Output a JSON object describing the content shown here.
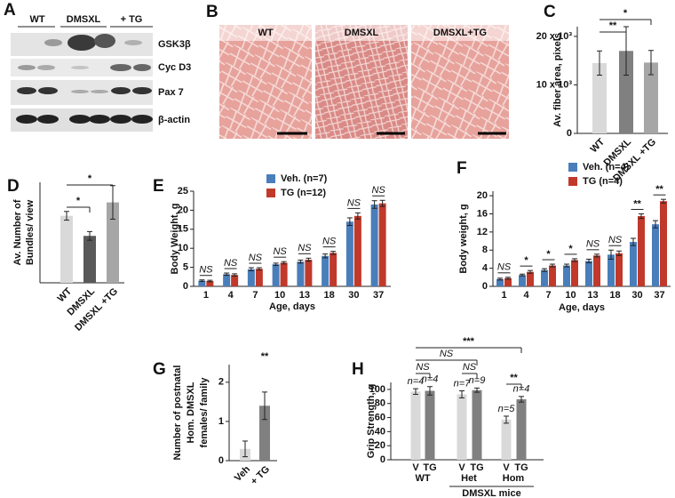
{
  "panels": {
    "A": {
      "letter": "A",
      "columns": [
        "WT",
        "DMSXL",
        "+ TG"
      ],
      "rows": [
        "GSK3β",
        "Cyc D3",
        "Pax 7",
        "β-actin"
      ]
    },
    "B": {
      "letter": "B",
      "images": [
        "WT",
        "DMSXL",
        "DMSXL+TG"
      ]
    }
  },
  "chart_data": [
    {
      "letter": "C",
      "type": "bar",
      "ylabel": "Av. fiber area, pixels",
      "categories": [
        "WT",
        "DMSXL",
        "DMSXL +TG"
      ],
      "values": [
        14500,
        17000,
        14600
      ],
      "errors": [
        2500,
        5000,
        2500
      ],
      "colors": [
        "#d9d9d9",
        "#808080",
        "#a6a6a6"
      ],
      "ylim": [
        0,
        22000
      ],
      "yticks": [
        0,
        {
          "value": 10000,
          "label": "10 x 10³"
        },
        {
          "value": 20000,
          "label": "20 x 10³"
        }
      ],
      "significance": [
        "**",
        "*"
      ]
    },
    {
      "letter": "D",
      "type": "bar",
      "ylabel": [
        "Av. Number of",
        "Bundles/ view"
      ],
      "categories": [
        "WT",
        "DMSXL",
        "DMSXL +TG"
      ],
      "values": [
        20,
        14,
        24
      ],
      "errors": [
        1.3,
        1.3,
        5
      ],
      "colors": [
        "#d9d9d9",
        "#595959",
        "#a6a6a6"
      ],
      "ylim": [
        0,
        30
      ],
      "significance": [
        "*",
        "*"
      ]
    },
    {
      "letter": "E",
      "type": "bar",
      "ylabel": "Body Weight, g",
      "xlabel": "Age, days",
      "categories": [
        "1",
        "4",
        "7",
        "10",
        "13",
        "18",
        "30",
        "37"
      ],
      "series": [
        {
          "name": "Veh. (n=7)",
          "color": "#4a7ebb",
          "values": [
            1.5,
            3.2,
            4.5,
            5.8,
            6.5,
            8,
            17,
            21.5
          ],
          "errors": [
            0.2,
            0.3,
            0.4,
            0.3,
            0.4,
            0.5,
            1,
            1
          ]
        },
        {
          "name": "TG (n=12)",
          "color": "#c0392b",
          "values": [
            1.4,
            3,
            4.6,
            6.2,
            7,
            8.8,
            18.5,
            21.8
          ],
          "errors": [
            0.2,
            0.3,
            0.3,
            0.3,
            0.4,
            0.4,
            0.8,
            0.8
          ]
        }
      ],
      "ylim": [
        0,
        25
      ],
      "yticks": [
        0,
        5,
        10,
        15,
        20,
        25
      ],
      "significance": [
        "NS",
        "NS",
        "NS",
        "NS",
        "NS",
        "NS",
        "NS",
        "NS"
      ]
    },
    {
      "letter": "F",
      "type": "bar",
      "ylabel": "Body weight, g",
      "xlabel": "Age, days",
      "categories": [
        "1",
        "4",
        "7",
        "10",
        "13",
        "18",
        "30",
        "37"
      ],
      "series": [
        {
          "name": "Veh. (n=4)",
          "color": "#4a7ebb",
          "values": [
            1.6,
            2.5,
            3.6,
            4.6,
            5.6,
            7,
            9.8,
            13.7
          ],
          "errors": [
            0.2,
            0.2,
            0.3,
            0.3,
            0.4,
            1,
            0.8,
            0.8
          ]
        },
        {
          "name": "TG (n=4)",
          "color": "#c0392b",
          "values": [
            1.8,
            3.2,
            4.6,
            5.8,
            6.8,
            7.3,
            15.5,
            18.8
          ],
          "errors": [
            0.2,
            0.3,
            0.3,
            0.3,
            0.3,
            0.5,
            0.5,
            0.4
          ]
        }
      ],
      "ylim": [
        0,
        21
      ],
      "yticks": [
        0,
        4,
        8,
        12,
        16,
        20
      ],
      "significance": [
        "NS",
        "*",
        "*",
        "*",
        "NS",
        "NS",
        "**",
        "**"
      ]
    },
    {
      "letter": "G",
      "type": "bar",
      "ylabel": [
        "Number of  postnatal",
        "Hom. DMSXL",
        "females/ family"
      ],
      "categories": [
        "Veh",
        "+ TG"
      ],
      "values": [
        0.3,
        1.4
      ],
      "errors": [
        0.2,
        0.35
      ],
      "colors": [
        "#d9d9d9",
        "#808080"
      ],
      "ylim": [
        0,
        2.45
      ],
      "yticks": [
        0,
        1,
        2
      ],
      "significance": [
        "**"
      ]
    },
    {
      "letter": "H",
      "type": "bar",
      "ylabel": "Grip Strength, g",
      "categories": [
        "V",
        "TG",
        "V",
        "TG",
        "V",
        "TG"
      ],
      "values": [
        97,
        98,
        93,
        99,
        57,
        86
      ],
      "errors": [
        4,
        6,
        5,
        3,
        5,
        4
      ],
      "colors": [
        "#d9d9d9",
        "#808080",
        "#d9d9d9",
        "#808080",
        "#d9d9d9",
        "#808080"
      ],
      "n_labels": [
        "n=4",
        "n=4",
        "n=7",
        "n=9",
        "n=5",
        "n=4"
      ],
      "groups": [
        "WT",
        "Het",
        "Hom"
      ],
      "group_title": "DMSXL mice",
      "ylim": [
        0,
        110
      ],
      "yticks": [
        0,
        20,
        40,
        60,
        80,
        100
      ],
      "significance": [
        "***",
        "NS",
        "NS",
        "NS",
        "**"
      ]
    }
  ]
}
